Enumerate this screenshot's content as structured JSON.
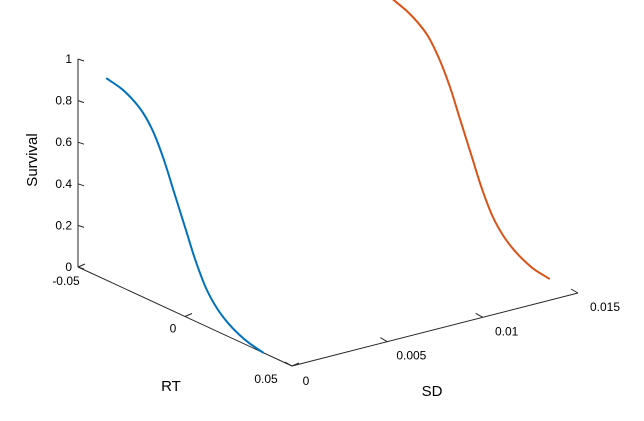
{
  "chart_data": {
    "type": "line",
    "projection": "3d",
    "title": "",
    "axes": {
      "x": {
        "label": "RT",
        "range": [
          -0.05,
          0.05
        ],
        "ticks": [
          -0.05,
          0,
          0.05
        ],
        "tick_labels": [
          "-0.05",
          "0",
          "0.05"
        ]
      },
      "y": {
        "label": "SD",
        "range": [
          0,
          0.015
        ],
        "ticks": [
          0,
          0.005,
          0.01,
          0.015
        ],
        "tick_labels": [
          "0",
          "0.005",
          "0.01",
          "0.015"
        ]
      },
      "z": {
        "label": "Survival",
        "range": [
          0,
          1
        ],
        "ticks": [
          0,
          0.2,
          0.4,
          0.6,
          0.8,
          1
        ],
        "tick_labels": [
          "0",
          "0.2",
          "0.4",
          "0.6",
          "0.8",
          "1"
        ]
      }
    },
    "grid": false,
    "legend": "none",
    "series": [
      {
        "color": "#0072BD",
        "sd": 0,
        "rt": [
          -0.0365,
          -0.03,
          -0.025,
          -0.02,
          -0.015,
          -0.01,
          -0.005,
          0,
          0.005,
          0.01,
          0.015,
          0.02,
          0.025,
          0.03,
          0.0365
        ],
        "survival": [
          0.97,
          0.955,
          0.93,
          0.89,
          0.82,
          0.71,
          0.57,
          0.43,
          0.29,
          0.18,
          0.11,
          0.065,
          0.035,
          0.015,
          0.0
        ]
      },
      {
        "color": "#D95319",
        "sd": 0.015,
        "rt": [
          -0.0365,
          -0.03,
          -0.025,
          -0.02,
          -0.015,
          -0.01,
          -0.005,
          0,
          0.005,
          0.01,
          0.015,
          0.02,
          0.025,
          0.03,
          0.0365
        ],
        "survival": [
          1.0,
          0.975,
          0.945,
          0.9,
          0.82,
          0.71,
          0.57,
          0.43,
          0.29,
          0.18,
          0.11,
          0.065,
          0.035,
          0.015,
          0.005
        ]
      }
    ]
  }
}
